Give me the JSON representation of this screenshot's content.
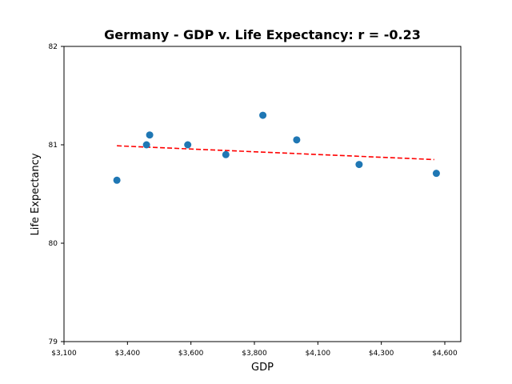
{
  "chart_data": {
    "type": "scatter",
    "title": "Germany - GDP v. Life Expectancy: r = -0.23",
    "xlabel": "GDP",
    "ylabel": "Life Expectancy",
    "xlim": [
      3100,
      4650
    ],
    "ylim": [
      79,
      82
    ],
    "xticks": [
      3100,
      3400,
      3600,
      3800,
      4100,
      4300,
      4600
    ],
    "xtick_labels": [
      "$3,100",
      "$3,400",
      "$3,600",
      "$3,800",
      "$4,100",
      "$4,300",
      "$4,600"
    ],
    "yticks": [
      79,
      80,
      81,
      82
    ],
    "ytick_labels": [
      "79",
      "80",
      "81",
      "82"
    ],
    "grid": false,
    "series": [
      {
        "color": "#1f77b4",
        "points": [
          {
            "x": 3350,
            "y": 80.64
          },
          {
            "x": 3460,
            "y": 81.0
          },
          {
            "x": 3470,
            "y": 81.1
          },
          {
            "x": 3590,
            "y": 81.0
          },
          {
            "x": 3710,
            "y": 80.9
          },
          {
            "x": 3840,
            "y": 81.3
          },
          {
            "x": 4000,
            "y": 81.05
          },
          {
            "x": 4230,
            "y": 80.8
          },
          {
            "x": 4560,
            "y": 80.71
          }
        ]
      }
    ],
    "trendline": {
      "color": "#ff0000",
      "style": "dashed",
      "start": {
        "x": 3350,
        "y": 80.99
      },
      "end": {
        "x": 4550,
        "y": 80.85
      }
    }
  }
}
